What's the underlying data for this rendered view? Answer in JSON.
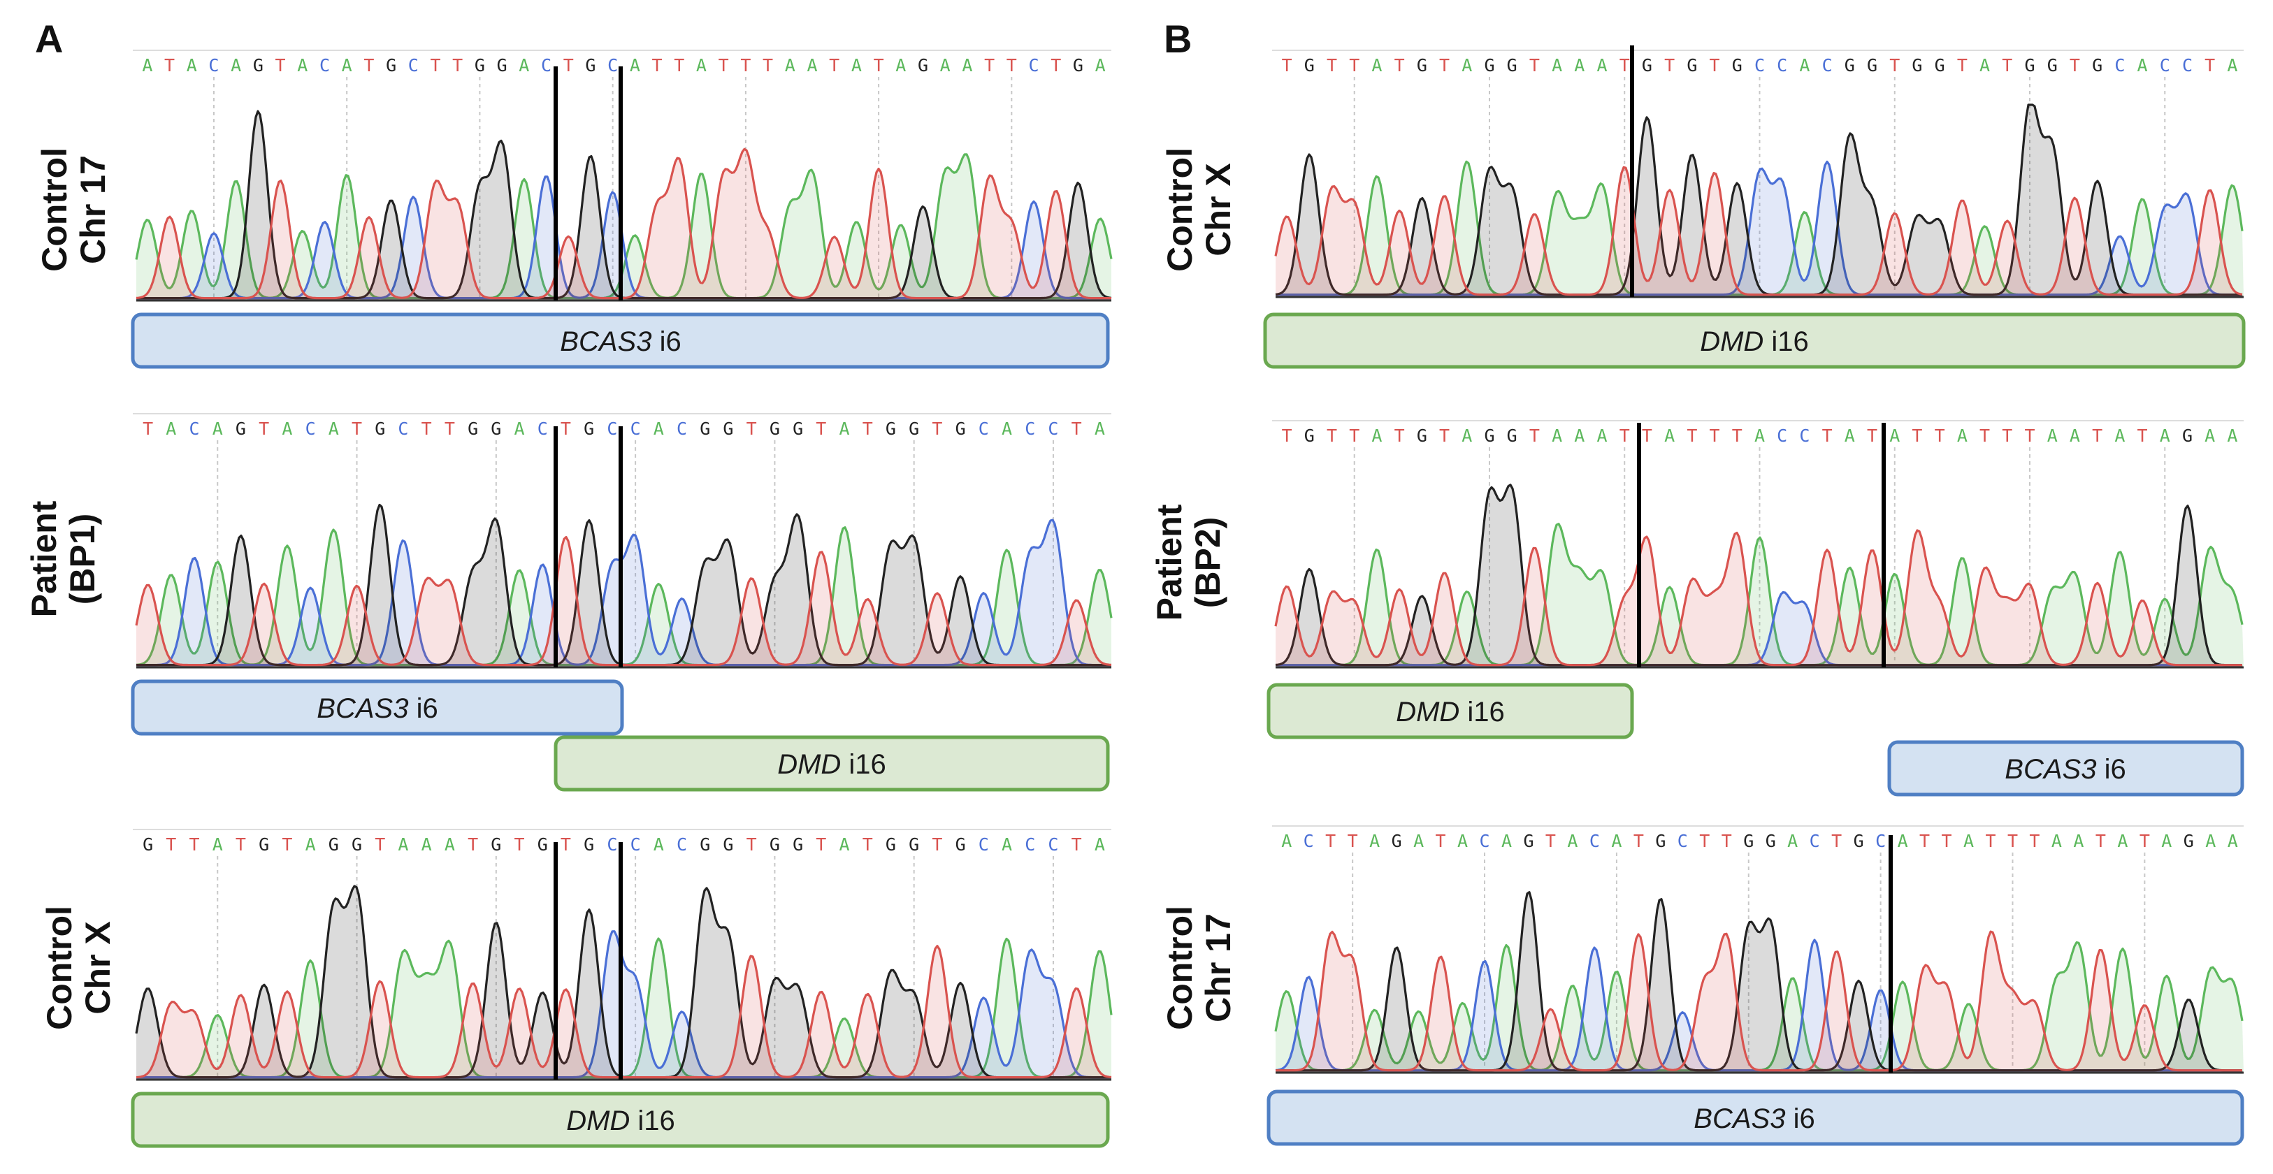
{
  "panels": [
    {
      "letter": "A",
      "tracks": [
        {
          "label1": "Control",
          "label2": "Chr 17",
          "sequence": "ATACAGTACATGCTTGGACTGCATTATTTAATATAGAATTCTGA",
          "seed": 11,
          "genes": [
            {
              "name": "BCAS3",
              "suffix": " i6",
              "type": "blue"
            }
          ]
        },
        {
          "label1": "Patient",
          "label2": "(BP1)",
          "sequence": "TACAGTACATGCTTGGACTGCCACGGTGGTATGGTGCACCTA",
          "seed": 23,
          "genes": [
            {
              "name": "BCAS3",
              "suffix": " i6",
              "type": "blue"
            },
            {
              "name": "DMD",
              "suffix": " i16",
              "type": "green"
            }
          ]
        },
        {
          "label1": "Control",
          "label2": "Chr X",
          "sequence": "GTTATGTAGGTAAATGTGTGCCACGGTGGTATGGTGCACCTA",
          "seed": 37,
          "genes": [
            {
              "name": "DMD",
              "suffix": " i16",
              "type": "green"
            }
          ]
        }
      ]
    },
    {
      "letter": "B",
      "tracks": [
        {
          "label1": "Control",
          "label2": "Chr X",
          "sequence": "TGTTATGTAGGTAAATGTGTGCCACGGTGGTATGGTGCACCTA",
          "seed": 51,
          "genes": [
            {
              "name": "DMD",
              "suffix": " i16",
              "type": "green"
            }
          ]
        },
        {
          "label1": "Patient",
          "label2": "(BP2)",
          "sequence": "TGTTATGTAGGTAAATTATTTACCTATATTATTTAATATAGAA",
          "seed": 67,
          "genes": [
            {
              "name": "DMD",
              "suffix": " i16",
              "type": "green"
            },
            {
              "name": "BCAS3",
              "suffix": " i6",
              "type": "blue"
            }
          ]
        },
        {
          "label1": "Control",
          "label2": "Chr 17",
          "sequence": "ACTTAGATACAGTACATGCTTGGACTGCATTATTTAATATAGAA",
          "seed": 79,
          "genes": [
            {
              "name": "BCAS3",
              "suffix": " i6",
              "type": "blue"
            }
          ]
        }
      ]
    }
  ],
  "colors": {
    "A": "#5cb85c",
    "C": "#4a6fd6",
    "G": "#222222",
    "T": "#d9534f",
    "blue_fill": "#d4e2f2",
    "blue_stroke": "#4f7fc4",
    "green_fill": "#dce9d3",
    "green_stroke": "#6aa84f"
  }
}
